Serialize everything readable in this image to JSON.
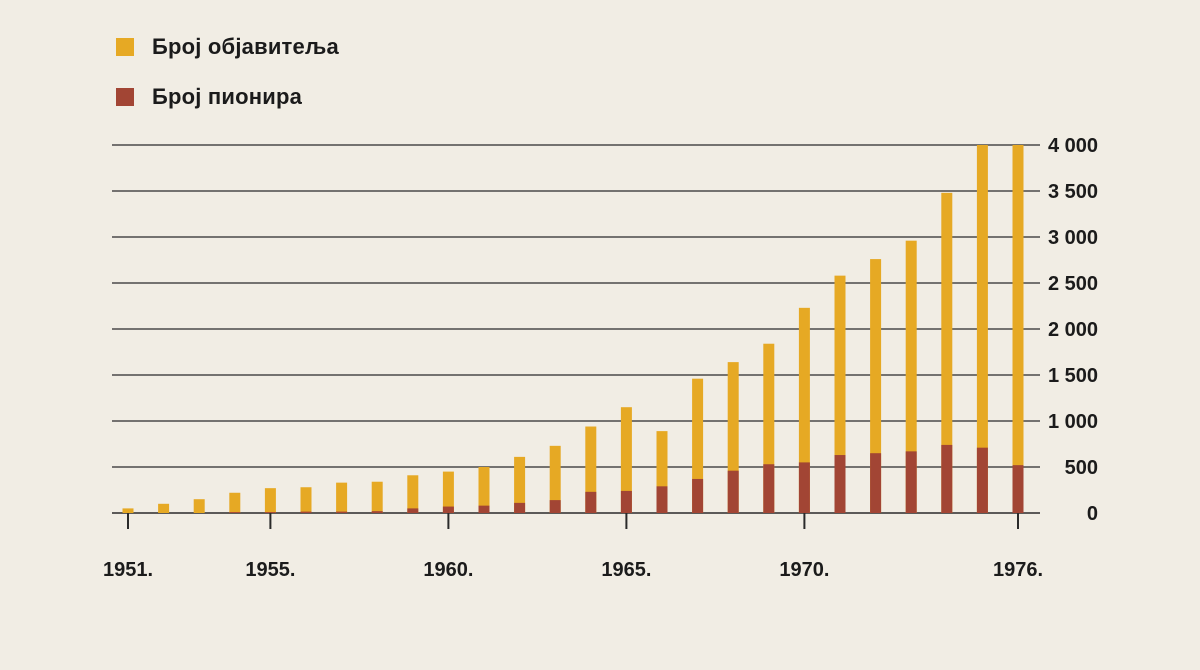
{
  "colors": {
    "publishers": "#e6a924",
    "pioneers": "#a24534",
    "gridline": "#2a2a2a",
    "background": "#f1ede4"
  },
  "legend": [
    {
      "label": "Број објавитеља",
      "color": "#e6a924"
    },
    {
      "label": "Број пионира",
      "color": "#a24534"
    }
  ],
  "chart_data": {
    "type": "bar",
    "stacked": false,
    "x": [
      1951,
      1952,
      1953,
      1954,
      1955,
      1956,
      1957,
      1958,
      1959,
      1960,
      1961,
      1962,
      1963,
      1964,
      1965,
      1966,
      1967,
      1968,
      1969,
      1970,
      1971,
      1972,
      1973,
      1974,
      1975,
      1976
    ],
    "series": [
      {
        "name": "Број објавитеља",
        "values": [
          50,
          100,
          150,
          220,
          270,
          280,
          330,
          340,
          410,
          450,
          500,
          610,
          730,
          940,
          1150,
          890,
          1460,
          1640,
          1840,
          2230,
          2580,
          2760,
          2960,
          3480,
          4000,
          4000
        ]
      },
      {
        "name": "Број пионира",
        "values": [
          0,
          0,
          0,
          10,
          10,
          15,
          15,
          20,
          50,
          70,
          80,
          110,
          140,
          230,
          240,
          290,
          370,
          460,
          530,
          550,
          630,
          650,
          670,
          740,
          710,
          520
        ]
      }
    ],
    "xtick_labels": [
      "1951.",
      "1955.",
      "1960.",
      "1965.",
      "1970.",
      "1976."
    ],
    "xtick_years": [
      1951,
      1955,
      1960,
      1965,
      1970,
      1976
    ],
    "ytick_values": [
      0,
      500,
      1000,
      1500,
      2000,
      2500,
      3000,
      3500,
      4000
    ],
    "ytick_labels": [
      "0",
      "500",
      "1 000",
      "1 500",
      "2 000",
      "2 500",
      "3 000",
      "3 500",
      "4 000"
    ],
    "ylim": [
      0,
      4000
    ],
    "y_axis_side": "right",
    "grid": true,
    "legend_position": "top-left",
    "title": "",
    "xlabel": "",
    "ylabel": ""
  }
}
